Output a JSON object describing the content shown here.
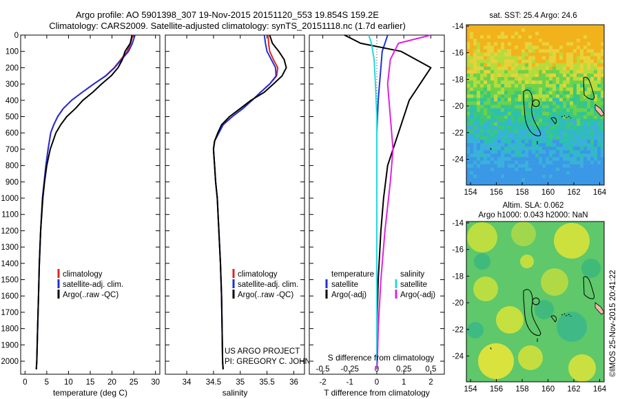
{
  "header": {
    "line1": "Argo profile: AO 5901398_307 19-Nov-2015 20151120_553 19.854S 159.2E",
    "line2": "Climatology: CARS2009. Satellite-adjusted climatology: synTS_20151118.nc (1.7d earlier)"
  },
  "colors": {
    "climatology": "#e0241f",
    "satellite": "#1f2fd6",
    "argo": "#000000",
    "sat_salinity": "#22d8e0",
    "argo_salinity": "#e020e0"
  },
  "chart_data": [
    {
      "type": "line",
      "id": "temperature",
      "xlabel": "temperature (deg C)",
      "ylabel": "",
      "xlim": [
        -1,
        31
      ],
      "ylim": [
        2080,
        0
      ],
      "xticks": [
        0,
        5,
        10,
        15,
        20,
        25,
        30
      ],
      "yticks": [
        0,
        100,
        200,
        300,
        400,
        500,
        600,
        700,
        800,
        900,
        1000,
        1100,
        1200,
        1300,
        1400,
        1500,
        1600,
        1700,
        1800,
        1900,
        2000
      ],
      "legend": [
        "climatology",
        "satellite-adj. clim.",
        "Argo(..raw -QC)"
      ],
      "series": [
        {
          "name": "climatology",
          "color": "#e0241f",
          "x": [
            24.8,
            24.3,
            23.5,
            22.0,
            20.5,
            18.5,
            15.8,
            13.2,
            10.7,
            8.8,
            7.5,
            6.6,
            5.9,
            5.3,
            4.8,
            4.4,
            4.0,
            3.6,
            3.3,
            3.1,
            2.9,
            2.8,
            2.7,
            2.6
          ],
          "y": [
            0,
            50,
            100,
            150,
            200,
            250,
            300,
            350,
            400,
            450,
            500,
            550,
            600,
            700,
            800,
            900,
            1000,
            1200,
            1400,
            1600,
            1800,
            1900,
            2000,
            2050
          ]
        },
        {
          "name": "satellite-adj. clim.",
          "color": "#1f2fd6",
          "x": [
            25.3,
            24.7,
            23.8,
            22.2,
            20.6,
            18.6,
            15.8,
            13.2,
            10.7,
            8.8,
            7.5,
            6.6,
            5.9,
            5.3,
            4.8,
            4.4,
            4.0,
            3.6,
            3.3,
            3.1,
            2.9,
            2.8,
            2.7,
            2.6
          ],
          "y": [
            0,
            50,
            100,
            150,
            200,
            250,
            300,
            350,
            400,
            450,
            500,
            550,
            600,
            700,
            800,
            900,
            1000,
            1200,
            1400,
            1600,
            1800,
            1900,
            2000,
            2050
          ]
        },
        {
          "name": "Argo(..raw -QC)",
          "color": "#000000",
          "x": [
            24.6,
            24.2,
            23.0,
            22.4,
            21.4,
            19.8,
            17.6,
            15.6,
            13.3,
            11.6,
            9.6,
            8.2,
            7.1,
            5.8,
            5.0,
            4.5,
            4.1,
            3.6,
            3.3,
            3.1,
            2.9,
            2.8,
            2.7,
            2.6
          ],
          "y": [
            0,
            50,
            100,
            150,
            200,
            250,
            300,
            350,
            400,
            450,
            500,
            550,
            600,
            700,
            800,
            900,
            1000,
            1200,
            1400,
            1600,
            1800,
            1900,
            2000,
            2050
          ]
        }
      ]
    },
    {
      "type": "line",
      "id": "salinity",
      "xlabel": "salinity",
      "xlim": [
        33.6,
        36.2
      ],
      "ylim": [
        2080,
        0
      ],
      "xticks": [
        34,
        34.5,
        35,
        35.5,
        36
      ],
      "legend": [
        "climatology",
        "satellite-adj. clim.",
        "Argo(..raw -QC)"
      ],
      "series": [
        {
          "name": "climatology",
          "color": "#e0241f",
          "x": [
            35.52,
            35.53,
            35.55,
            35.62,
            35.7,
            35.68,
            35.55,
            35.38,
            35.22,
            35.05,
            34.85,
            34.68,
            34.6,
            34.52,
            34.5,
            34.52,
            34.54,
            34.57,
            34.6,
            34.63,
            34.65,
            34.66,
            34.67,
            34.68
          ],
          "y": [
            0,
            50,
            100,
            150,
            200,
            250,
            300,
            350,
            400,
            450,
            500,
            550,
            600,
            650,
            700,
            800,
            900,
            1000,
            1200,
            1400,
            1600,
            1800,
            2000,
            2050
          ]
        },
        {
          "name": "satellite-adj. clim.",
          "color": "#1f2fd6",
          "x": [
            35.45,
            35.47,
            35.5,
            35.58,
            35.66,
            35.67,
            35.55,
            35.38,
            35.22,
            35.05,
            34.85,
            34.68,
            34.6,
            34.52,
            34.5,
            34.52,
            34.54,
            34.57,
            34.6,
            34.63,
            34.65,
            34.66,
            34.67,
            34.68
          ],
          "y": [
            0,
            50,
            100,
            150,
            200,
            250,
            300,
            350,
            400,
            450,
            500,
            550,
            600,
            650,
            700,
            800,
            900,
            1000,
            1200,
            1400,
            1600,
            1800,
            2000,
            2050
          ]
        },
        {
          "name": "Argo(..raw -QC)",
          "color": "#000000",
          "x": [
            35.55,
            35.6,
            35.72,
            35.82,
            35.86,
            35.78,
            35.62,
            35.45,
            35.2,
            35.0,
            34.8,
            34.65,
            34.58,
            34.52,
            34.5,
            34.52,
            34.54,
            34.57,
            34.6,
            34.63,
            34.65,
            34.66,
            34.67,
            34.68
          ],
          "y": [
            0,
            50,
            100,
            150,
            200,
            250,
            300,
            350,
            400,
            450,
            500,
            550,
            600,
            650,
            700,
            800,
            900,
            1000,
            1200,
            1400,
            1600,
            1800,
            2000,
            2050
          ]
        }
      ]
    },
    {
      "type": "line",
      "id": "difference",
      "xlabel": "T difference from climatology",
      "xlabel2": "S difference from climatology",
      "xlim": [
        -2.5,
        2.5
      ],
      "ylim": [
        2080,
        0
      ],
      "xticks": [
        -2,
        -1,
        0,
        1,
        2
      ],
      "xticks_s": [
        "-0.5",
        "-0.25",
        "0",
        "0.25",
        "0.5"
      ],
      "legend": {
        "temperature": [
          "satellite",
          "Argo(-adj)"
        ],
        "salinity": [
          "satellite",
          "Argo(-adj)"
        ]
      },
      "series": [
        {
          "name": "satellite",
          "quantity": "temperature",
          "color": "#1f2fd6",
          "x": [
            0.4,
            0.3,
            0.2,
            0.15,
            0.1,
            0.05,
            0,
            0,
            0,
            0,
            0,
            0,
            0
          ],
          "y": [
            0,
            50,
            100,
            200,
            300,
            400,
            600,
            800,
            1000,
            1200,
            1500,
            1800,
            2050
          ]
        },
        {
          "name": "Argo(-adj)",
          "quantity": "temperature",
          "color": "#000000",
          "x": [
            -1.2,
            -0.6,
            0.9,
            2.0,
            1.6,
            1.2,
            0.8,
            0.4,
            0.25,
            0.15,
            0.05,
            0,
            0
          ],
          "y": [
            0,
            50,
            100,
            200,
            300,
            400,
            600,
            800,
            1000,
            1200,
            1500,
            1800,
            2050
          ]
        },
        {
          "name": "satellite",
          "quantity": "salinity",
          "color": "#22d8e0",
          "x": [
            -0.3,
            -0.2,
            -0.1,
            -0.05,
            0,
            0,
            0,
            0,
            0,
            0,
            0,
            0
          ],
          "y": [
            0,
            50,
            150,
            300,
            500,
            700,
            900,
            1200,
            1500,
            1800,
            2000,
            2050
          ]
        },
        {
          "name": "Argo(-adj)",
          "quantity": "salinity",
          "color": "#e020e0",
          "x": [
            2.0,
            0.8,
            0.5,
            0.4,
            0.5,
            0.6,
            0.5,
            0.3,
            0.15,
            0.05,
            0.02,
            0
          ],
          "y": [
            0,
            50,
            150,
            300,
            500,
            700,
            900,
            1200,
            1500,
            1800,
            2000,
            2050
          ]
        }
      ]
    }
  ],
  "maps": {
    "sst": {
      "title": "sat. SST: 25.4 Argo: 24.6",
      "xticks": [
        "154",
        "156",
        "158",
        "160",
        "162",
        "164"
      ],
      "yticks": [
        "-14",
        "-16",
        "-18",
        "-20",
        "-22",
        "-24"
      ]
    },
    "sla": {
      "title1": "Altim. SLA: 0.062",
      "title2": "Argo h1000: 0.043 h2000: NaN",
      "xticks": [
        "154",
        "156",
        "158",
        "160",
        "162",
        "164"
      ],
      "yticks": [
        "-14",
        "-16",
        "-18",
        "-20",
        "-22",
        "-24"
      ]
    }
  },
  "annotations": {
    "project": "US ARGO PROJECT",
    "pi": "PI: GREGORY C. JOHNSON",
    "copyright": "©IMOS 25-Nov-2015 20:41:22"
  },
  "legend_titles": {
    "temperature": "temperature",
    "salinity": "salinity"
  }
}
